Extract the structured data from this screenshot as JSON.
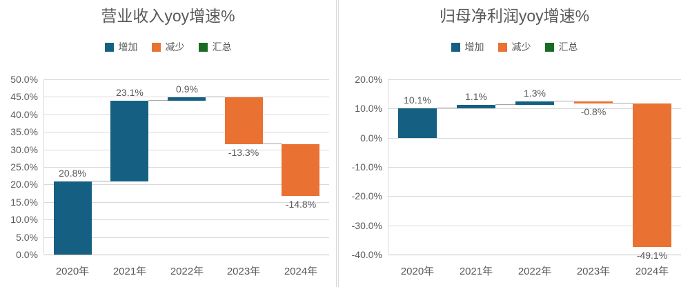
{
  "colors": {
    "increase": "#156082",
    "decrease": "#E97132",
    "total": "#196B24",
    "grid": "#D9D9D9",
    "axis_line": "#BFBFBF",
    "connector": "#A6A6A6",
    "text": "#595959",
    "background": "#FFFFFF"
  },
  "chart_data": [
    {
      "type": "bar",
      "subtype": "waterfall",
      "title": "营业收入yoy增速%",
      "legend": [
        {
          "label": "增加",
          "color": "#156082"
        },
        {
          "label": "减少",
          "color": "#E97132"
        },
        {
          "label": "汇总",
          "color": "#196B24"
        }
      ],
      "legend_position": "top",
      "grid": true,
      "categories": [
        "2020年",
        "2021年",
        "2022年",
        "2023年",
        "2024年"
      ],
      "points": [
        {
          "delta": 20.8,
          "label": "20.8%",
          "type": "increase"
        },
        {
          "delta": 23.1,
          "label": "23.1%",
          "type": "increase"
        },
        {
          "delta": 0.9,
          "label": "0.9%",
          "type": "increase"
        },
        {
          "delta": -13.3,
          "label": "-13.3%",
          "type": "decrease"
        },
        {
          "delta": -14.8,
          "label": "-14.8%",
          "type": "decrease"
        }
      ],
      "cumulative": [
        20.8,
        43.9,
        44.8,
        31.5,
        16.7
      ],
      "ylim": [
        0,
        50
      ],
      "yticks": [
        {
          "value": 0,
          "label": "0.0%"
        },
        {
          "value": 5,
          "label": "5.0%"
        },
        {
          "value": 10,
          "label": "10.0%"
        },
        {
          "value": 15,
          "label": "15.0%"
        },
        {
          "value": 20,
          "label": "20.0%"
        },
        {
          "value": 25,
          "label": "25.0%"
        },
        {
          "value": 30,
          "label": "30.0%"
        },
        {
          "value": 35,
          "label": "35.0%"
        },
        {
          "value": 40,
          "label": "40.0%"
        },
        {
          "value": 45,
          "label": "45.0%"
        },
        {
          "value": 50,
          "label": "50.0%"
        }
      ]
    },
    {
      "type": "bar",
      "subtype": "waterfall",
      "title": "归母净利润yoy增速%",
      "legend": [
        {
          "label": "增加",
          "color": "#156082"
        },
        {
          "label": "减少",
          "color": "#E97132"
        },
        {
          "label": "汇总",
          "color": "#196B24"
        }
      ],
      "legend_position": "top",
      "grid": true,
      "categories": [
        "2020年",
        "2021年",
        "2022年",
        "2023年",
        "2024年"
      ],
      "points": [
        {
          "delta": 10.1,
          "label": "10.1%",
          "type": "increase"
        },
        {
          "delta": 1.1,
          "label": "1.1%",
          "type": "increase"
        },
        {
          "delta": 1.3,
          "label": "1.3%",
          "type": "increase"
        },
        {
          "delta": -0.8,
          "label": "-0.8%",
          "type": "decrease"
        },
        {
          "delta": -49.1,
          "label": "-49.1%",
          "type": "decrease"
        }
      ],
      "cumulative": [
        10.1,
        11.2,
        12.5,
        11.7,
        -37.4
      ],
      "ylim": [
        -40,
        20
      ],
      "yticks": [
        {
          "value": -40,
          "label": "-40.0%"
        },
        {
          "value": -30,
          "label": "-30.0%"
        },
        {
          "value": -20,
          "label": "-20.0%"
        },
        {
          "value": -10,
          "label": "-10.0%"
        },
        {
          "value": 0,
          "label": "0.0%"
        },
        {
          "value": 10,
          "label": "10.0%"
        },
        {
          "value": 20,
          "label": "20.0%"
        }
      ]
    }
  ]
}
